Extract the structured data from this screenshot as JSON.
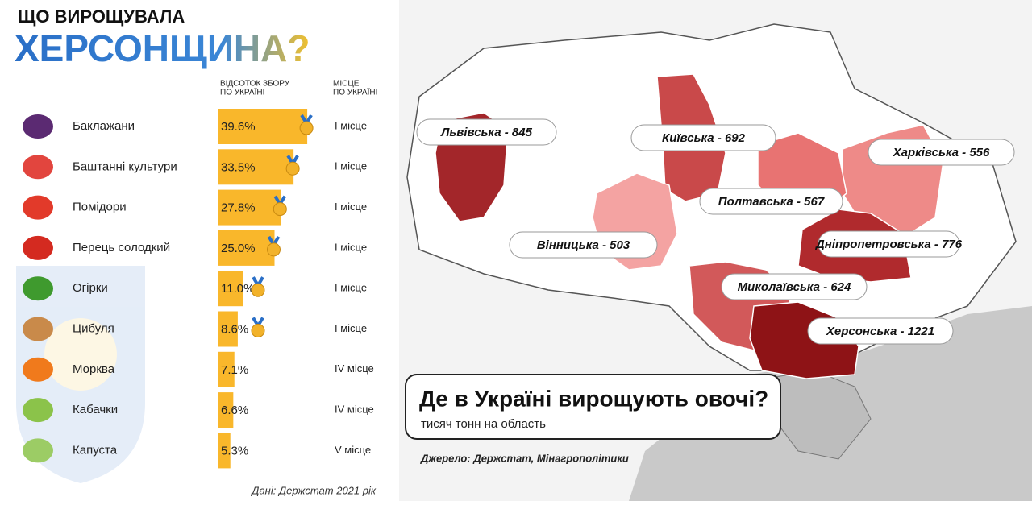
{
  "chart_data": {
    "type": "bar",
    "title": "ЩО ВИРОЩУВАЛА",
    "subtitle": "ХЕРСОНЩИНА?",
    "value_header": [
      "ВІДСОТОК ЗБОРУ",
      "ПО УКРАЇНІ"
    ],
    "rank_header": [
      "МІСЦЕ",
      "ПО УКРАЇНІ"
    ],
    "categories": [
      "Баклажани",
      "Баштанні культури",
      "Помідори",
      "Перець солодкий",
      "Огірки",
      "Цибуля",
      "Морква",
      "Кабачки",
      "Капуста"
    ],
    "values": [
      39.6,
      33.5,
      27.8,
      25.0,
      11.0,
      8.6,
      7.1,
      6.6,
      5.3
    ],
    "value_labels": [
      "39.6%",
      "33.5%",
      "27.8%",
      "25.0%",
      "11.0%",
      "8.6%",
      "7.1%",
      "6.6%",
      "5.3%"
    ],
    "ranks": [
      "I місце",
      "I місце",
      "I місце",
      "I місце",
      "I місце",
      "I місце",
      "IV місце",
      "IV місце",
      "V місце"
    ],
    "color": "#f9b72b",
    "source": "Дані: Держстат 2021 рік"
  },
  "map": {
    "title": "Де в Україні вирощують овочі?",
    "subtitle": "тисяч тонн на область",
    "source": "Джерело: Держстат, Мінагрополітики",
    "regions": [
      {
        "label": "Львівська - 845",
        "value": 845,
        "color": "#a3262a"
      },
      {
        "label": "Київська - 692",
        "value": 692,
        "color": "#c9494a"
      },
      {
        "label": "Харківська - 556",
        "value": 556,
        "color": "#ee8a88"
      },
      {
        "label": "Полтавська - 567",
        "value": 567,
        "color": "#e87372"
      },
      {
        "label": "Вінницька - 503",
        "value": 503,
        "color": "#f4a3a2"
      },
      {
        "label": "Дніпропетровська - 776",
        "value": 776,
        "color": "#b02a2d"
      },
      {
        "label": "Миколаївська - 624",
        "value": 624,
        "color": "#d2595a"
      },
      {
        "label": "Херсонська - 1221",
        "value": 1221,
        "color": "#8e1316"
      }
    ]
  }
}
